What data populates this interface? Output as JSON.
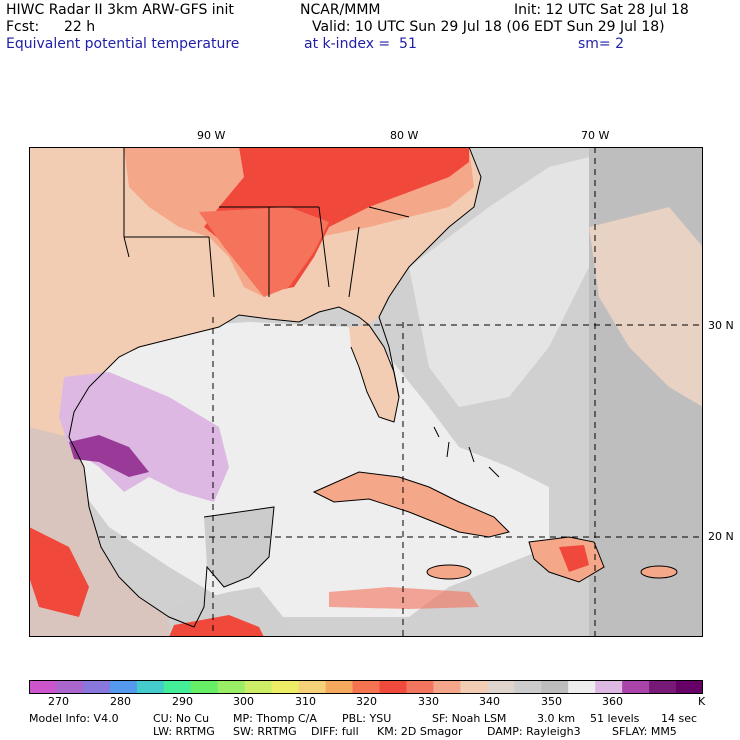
{
  "header": {
    "title": "HIWC Radar II 3km ARW-GFS init",
    "org": "NCAR/MMM",
    "init": "Init: 12 UTC Sat 28 Jul 18",
    "fcst_label": "Fcst:",
    "fcst_value": "22 h",
    "valid": "Valid: 10 UTC Sun 29 Jul 18 (06 EDT Sun 29 Jul 18)",
    "field": "Equivalent potential temperature",
    "level": "at k-index =  51",
    "smooth": "sm= 2"
  },
  "map": {
    "lon_labels": [
      "90 W",
      "80 W",
      "70 W"
    ],
    "lat_labels": [
      "30 N",
      "20 N"
    ],
    "colors": {
      "ocean_light": "#eeeeee",
      "ocean_mid": "#d0d0d0",
      "ocean_dark": "#bebebe",
      "warm_tan": "#f2cdb3",
      "salmon": "#f5a789",
      "orange_red": "#f4735a",
      "red": "#f0493b",
      "lavender": "#ddb8e2",
      "purple": "#9a3a98",
      "coast": "#000000"
    }
  },
  "colorbar": {
    "colors": [
      "#cc55cc",
      "#aa66cc",
      "#8877dd",
      "#5599ee",
      "#44cccc",
      "#44ee99",
      "#66ee66",
      "#99ee66",
      "#ccee66",
      "#eeee66",
      "#f5d27a",
      "#f5a95e",
      "#f57350",
      "#f04a3c",
      "#f27560",
      "#f3a68a",
      "#f2cdb4",
      "#e0d4cf",
      "#cccccc",
      "#bdbdbd",
      "#eeeeee",
      "#ddb8e2",
      "#aa44aa",
      "#771a77",
      "#660066"
    ],
    "tick_labels": [
      "270",
      "280",
      "290",
      "300",
      "310",
      "320",
      "330",
      "340",
      "350",
      "360"
    ],
    "unit": "K"
  },
  "model_info": {
    "line1": [
      "Model Info: V4.0",
      "CU: No Cu",
      "MP: Thomp C/A",
      "PBL: YSU",
      "SF: Noah LSM",
      "3.0 km",
      "51 levels",
      "14 sec"
    ],
    "line2": [
      "LW: RRTMG",
      "SW: RRTMG",
      "DIFF: full",
      "KM: 2D Smagor",
      "DAMP: Rayleigh3",
      "SFLAY: MM5"
    ]
  }
}
